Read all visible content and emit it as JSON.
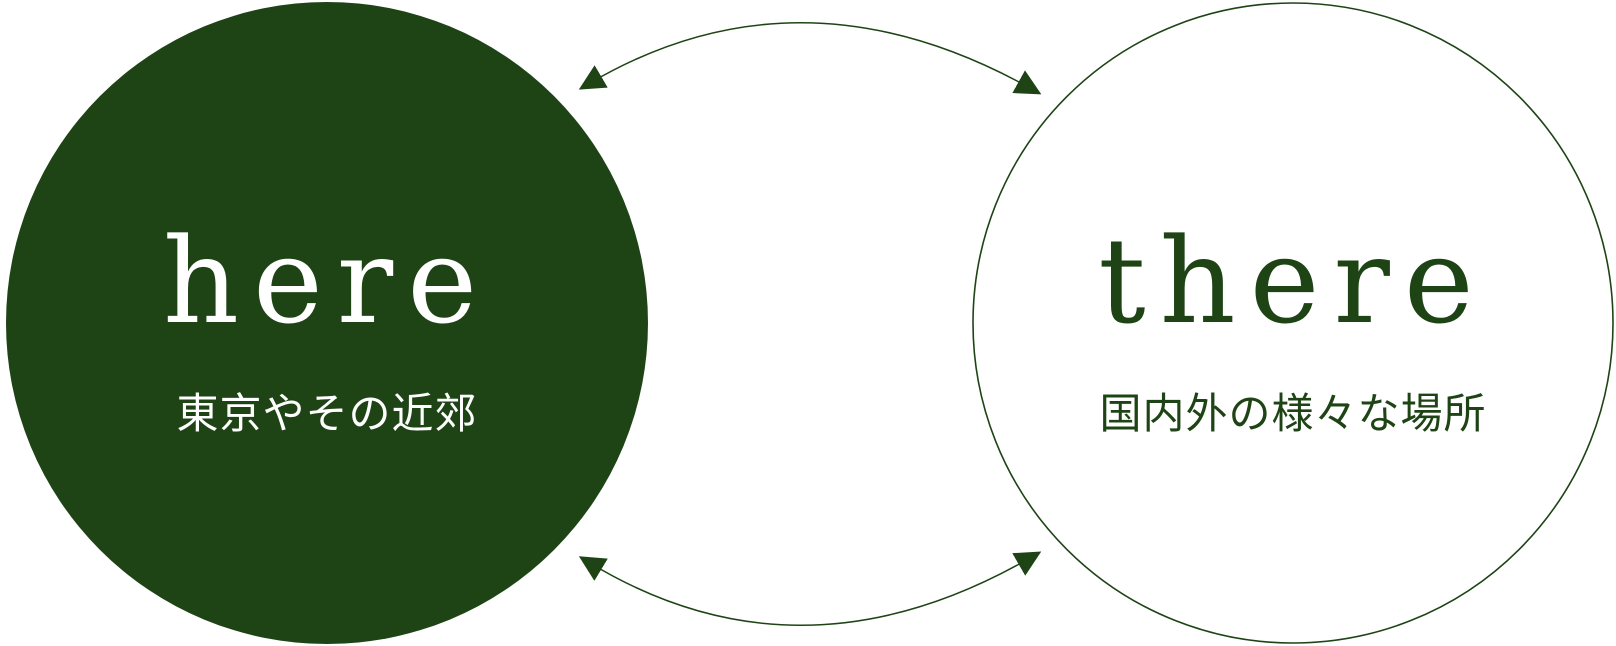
{
  "colors": {
    "primary": "#1e4416",
    "background": "#ffffff",
    "text_on_primary": "#ffffff"
  },
  "left_node": {
    "title": "here",
    "subtitle": "東京やその近郊",
    "style": "filled"
  },
  "right_node": {
    "title": "there",
    "subtitle": "国内外の様々な場所",
    "style": "outline"
  },
  "connectors": [
    {
      "from": "left_node",
      "to": "right_node",
      "position": "top",
      "direction": "bidirectional"
    },
    {
      "from": "left_node",
      "to": "right_node",
      "position": "bottom",
      "direction": "bidirectional"
    }
  ]
}
